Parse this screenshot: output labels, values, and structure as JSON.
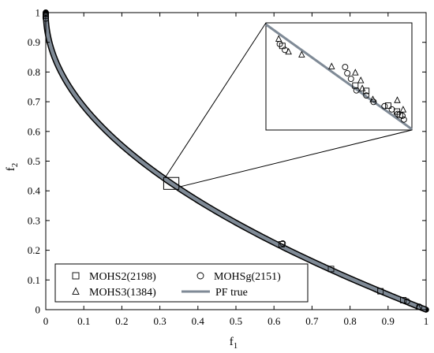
{
  "chart_data": {
    "type": "scatter",
    "title": "",
    "xlabel": "f",
    "xlabel_sub": "1",
    "ylabel": "f",
    "ylabel_sub": "2",
    "xlim": [
      0,
      1
    ],
    "ylim": [
      0,
      1
    ],
    "xticks": [
      0,
      0.1,
      0.2,
      0.3,
      0.4,
      0.5,
      0.6,
      0.7,
      0.8,
      0.9,
      1
    ],
    "xtick_labels": [
      "0",
      "0.1",
      "0.2",
      "0.3",
      "0.4",
      "0.5",
      "0.6",
      "0.7",
      "0.8",
      "0.9",
      "1"
    ],
    "yticks": [
      0,
      0.1,
      0.2,
      0.3,
      0.4,
      0.5,
      0.6,
      0.7,
      0.8,
      0.9,
      1
    ],
    "ytick_labels": [
      "0",
      "0.1",
      "0.2",
      "0.3",
      "0.4",
      "0.5",
      "0.6",
      "0.7",
      "0.8",
      "0.9",
      "1"
    ],
    "grid": false,
    "legend_position": "bottom",
    "true_front": "f2 = 1 - sqrt(f1)",
    "series": [
      {
        "name": "MOHS2(2198)",
        "marker": "square",
        "points": [
          [
            0.0,
            0.99
          ],
          [
            0.62,
            0.22
          ],
          [
            0.75,
            0.137
          ],
          [
            0.88,
            0.062
          ],
          [
            0.94,
            0.032
          ]
        ],
        "inset_points": [
          [
            0.3145,
            0.4364
          ],
          [
            0.3345,
            0.4216
          ],
          [
            0.3375,
            0.4196
          ],
          [
            0.3435,
            0.4141
          ],
          [
            0.3459,
            0.4119
          ],
          [
            0.3467,
            0.4106
          ]
        ]
      },
      {
        "name": "MOHSg(2151)",
        "marker": "circle",
        "points": [
          [
            0.0,
            1.0
          ],
          [
            0.0,
            0.98
          ],
          [
            0.623,
            0.223
          ],
          [
            0.95,
            0.028
          ],
          [
            0.982,
            0.01
          ]
        ],
        "inset_points": [
          [
            0.3138,
            0.4371
          ],
          [
            0.3152,
            0.4349
          ],
          [
            0.3317,
            0.4285
          ],
          [
            0.3323,
            0.4262
          ],
          [
            0.3333,
            0.4241
          ],
          [
            0.3348,
            0.4198
          ],
          [
            0.3375,
            0.4179
          ],
          [
            0.3395,
            0.4155
          ],
          [
            0.3425,
            0.4139
          ],
          [
            0.3445,
            0.4127
          ],
          [
            0.3461,
            0.411
          ],
          [
            0.3474,
            0.4103
          ],
          [
            0.3478,
            0.4089
          ]
        ]
      },
      {
        "name": "MOHS3(1384)",
        "marker": "triangle",
        "points": [
          [
            0.0,
            0.995
          ],
          [
            0.98,
            0.008
          ]
        ],
        "inset_points": [
          [
            0.3135,
            0.439
          ],
          [
            0.3162,
            0.4342
          ],
          [
            0.3198,
            0.4331
          ],
          [
            0.328,
            0.4287
          ],
          [
            0.3345,
            0.4264
          ],
          [
            0.336,
            0.4235
          ],
          [
            0.3364,
            0.4205
          ],
          [
            0.3393,
            0.4164
          ],
          [
            0.346,
            0.4161
          ],
          [
            0.3476,
            0.4126
          ]
        ]
      },
      {
        "name": "PF true",
        "marker": "line",
        "color": "#7f8a96"
      }
    ],
    "inset": {
      "source_xlim": [
        0.31,
        0.35
      ],
      "source_ylim": [
        0.405,
        0.445
      ]
    }
  }
}
